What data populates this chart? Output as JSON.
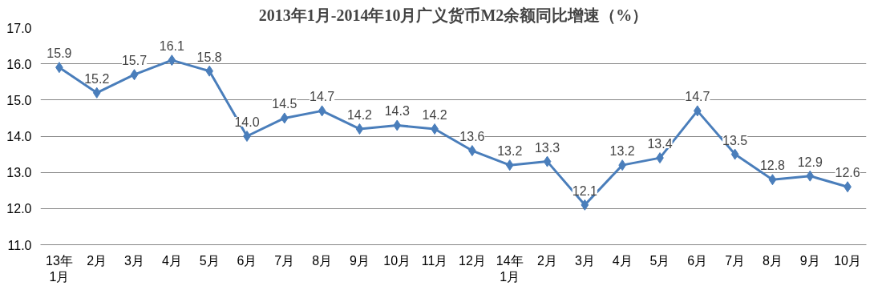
{
  "chart_data": {
    "type": "line",
    "title": "2013年1月-2014年10月广义货币M2余额同比增速（%）",
    "categories": [
      "13年1月",
      "2月",
      "3月",
      "4月",
      "5月",
      "6月",
      "7月",
      "8月",
      "9月",
      "10月",
      "11月",
      "12月",
      "14年1月",
      "2月",
      "3月",
      "4月",
      "5月",
      "6月",
      "7月",
      "8月",
      "9月",
      "10月"
    ],
    "series": [
      {
        "color": "#4a7ebb",
        "values": [
          15.9,
          15.2,
          15.7,
          16.1,
          15.8,
          14.0,
          14.5,
          14.7,
          14.2,
          14.3,
          14.2,
          13.6,
          13.2,
          13.3,
          12.1,
          13.2,
          13.4,
          14.7,
          13.5,
          12.8,
          12.9,
          12.6
        ],
        "value_labels": [
          "15.9",
          "15.2",
          "15.7",
          "16.1",
          "15.8",
          "14.0",
          "14.5",
          "14.7",
          "14.2",
          "14.3",
          "14.2",
          "13.6",
          "13.2",
          "13.3",
          "12.1",
          "13.2",
          "13.4",
          "14.7",
          "13.5",
          "12.8",
          "12.9",
          "12.6"
        ]
      }
    ],
    "ylim": [
      11,
      17
    ],
    "yticks": [
      {
        "value": 11,
        "label": "11.0"
      },
      {
        "value": 12,
        "label": "12.0"
      },
      {
        "value": 13,
        "label": "13.0"
      },
      {
        "value": 14,
        "label": "14.0"
      },
      {
        "value": 15,
        "label": "15.0"
      },
      {
        "value": 16,
        "label": "16.0"
      },
      {
        "value": 17,
        "label": "17.0"
      }
    ],
    "grid": "y",
    "marker": "diamond",
    "line_style": "solid"
  }
}
